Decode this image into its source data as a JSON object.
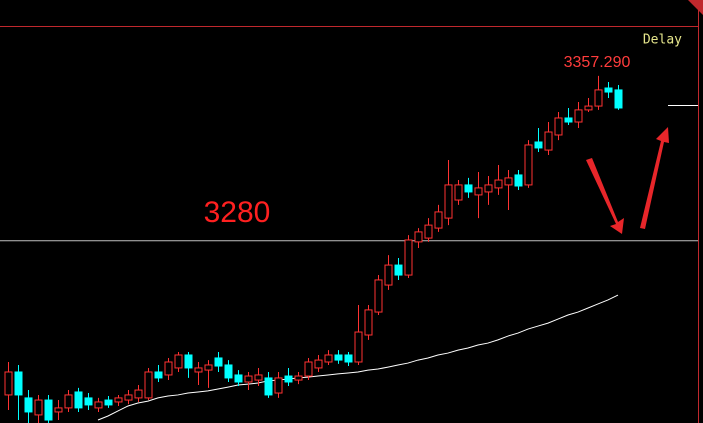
{
  "chart_data": {
    "type": "candlestick",
    "status": "Delay",
    "ylim": [
      3194,
      3393
    ],
    "up_color": "#ff3232",
    "down_color": "#00ffff",
    "open": [
      3207.2,
      3218.0,
      3205.8,
      3197.8,
      3204.8,
      3199.2,
      3201.1,
      3208.6,
      3205.8,
      3201.1,
      3204.8,
      3203.9,
      3204.8,
      3205.8,
      3205.8,
      3218.0,
      3216.6,
      3219.9,
      3226.0,
      3218.0,
      3218.9,
      3224.6,
      3221.3,
      3216.6,
      3213.3,
      3214.2,
      3215.2,
      3208.1,
      3216.1,
      3214.2,
      3216.1,
      3219.9,
      3222.7,
      3226.0,
      3226.0,
      3222.7,
      3235.4,
      3246.2,
      3258.9,
      3268.3,
      3263.6,
      3279.2,
      3281.0,
      3285.7,
      3290.4,
      3298.9,
      3306.0,
      3301.3,
      3302.7,
      3304.6,
      3306.0,
      3310.7,
      3306.0,
      3326.2,
      3322.4,
      3329.5,
      3337.5,
      3335.6,
      3341.3,
      3343.1,
      3351.6,
      3350.7
    ],
    "high": [
      3222.7,
      3221.3,
      3209.5,
      3207.2,
      3207.2,
      3204.8,
      3209.5,
      3210.5,
      3208.1,
      3205.8,
      3206.7,
      3207.2,
      3209.5,
      3211.9,
      3219.9,
      3221.3,
      3224.6,
      3227.4,
      3227.4,
      3222.7,
      3223.6,
      3227.4,
      3223.6,
      3218.9,
      3218.0,
      3219.9,
      3218.0,
      3218.0,
      3219.9,
      3218.0,
      3224.6,
      3226.0,
      3228.3,
      3228.3,
      3227.4,
      3249.5,
      3249.5,
      3263.6,
      3273.0,
      3271.6,
      3282.4,
      3285.7,
      3290.4,
      3296.6,
      3317.7,
      3308.3,
      3309.3,
      3312.1,
      3310.2,
      3315.4,
      3313.0,
      3313.0,
      3327.1,
      3332.8,
      3335.6,
      3340.3,
      3342.2,
      3345.0,
      3346.9,
      3357.29,
      3354.4,
      3353.0
    ],
    "low": [
      3200.1,
      3195.4,
      3194.0,
      3194.0,
      3194.0,
      3195.4,
      3199.2,
      3199.2,
      3200.1,
      3199.2,
      3201.1,
      3202.0,
      3202.9,
      3203.9,
      3204.8,
      3213.3,
      3214.2,
      3218.0,
      3215.2,
      3211.9,
      3210.5,
      3218.0,
      3213.3,
      3211.4,
      3209.5,
      3211.4,
      3205.8,
      3205.8,
      3211.4,
      3212.3,
      3214.2,
      3218.0,
      3221.3,
      3221.8,
      3220.8,
      3221.3,
      3233.1,
      3244.8,
      3256.6,
      3261.3,
      3262.2,
      3276.3,
      3279.2,
      3283.9,
      3287.1,
      3296.6,
      3299.9,
      3290.4,
      3296.6,
      3301.3,
      3294.2,
      3303.6,
      3304.6,
      3321.5,
      3320.1,
      3327.1,
      3334.2,
      3332.8,
      3340.3,
      3341.3,
      3346.9,
      3341.3
    ],
    "close": [
      3218.0,
      3207.2,
      3199.2,
      3204.8,
      3195.4,
      3201.1,
      3207.2,
      3201.1,
      3202.5,
      3203.9,
      3202.5,
      3205.8,
      3207.2,
      3209.5,
      3218.0,
      3215.2,
      3222.7,
      3226.0,
      3219.9,
      3219.9,
      3221.3,
      3220.8,
      3215.2,
      3213.3,
      3216.1,
      3216.6,
      3207.2,
      3215.2,
      3213.3,
      3216.1,
      3222.7,
      3223.6,
      3226.0,
      3223.6,
      3222.7,
      3236.8,
      3247.2,
      3261.3,
      3268.3,
      3263.6,
      3280.1,
      3283.9,
      3287.1,
      3293.3,
      3306.0,
      3306.0,
      3302.7,
      3304.6,
      3306.0,
      3308.3,
      3309.3,
      3305.5,
      3324.8,
      3323.4,
      3330.9,
      3337.5,
      3335.6,
      3341.3,
      3343.1,
      3350.7,
      3349.7,
      3342.2
    ],
    "ma": {
      "color": "#ffffff",
      "values": [
        null,
        null,
        null,
        null,
        null,
        null,
        null,
        null,
        null,
        3195.4,
        3197.3,
        3199.7,
        3202.0,
        3203.4,
        3204.3,
        3205.8,
        3206.7,
        3207.2,
        3208.1,
        3208.6,
        3209.1,
        3210.0,
        3210.9,
        3211.9,
        3212.3,
        3212.8,
        3213.8,
        3214.2,
        3214.7,
        3215.2,
        3215.6,
        3216.1,
        3216.6,
        3217.1,
        3217.5,
        3218.0,
        3218.9,
        3219.4,
        3220.3,
        3221.3,
        3222.2,
        3223.6,
        3224.6,
        3226.0,
        3226.9,
        3228.3,
        3229.3,
        3230.7,
        3231.6,
        3233.1,
        3234.9,
        3236.3,
        3238.2,
        3239.6,
        3241.0,
        3242.9,
        3244.8,
        3246.2,
        3248.1,
        3250.0,
        3251.9,
        3254.2
      ]
    },
    "annotations": [
      {
        "text": "3357.290",
        "value": 3357.29,
        "color": "#ff3c3c"
      },
      {
        "text": "3280",
        "value": 3280,
        "color": "#ff2020"
      }
    ]
  }
}
